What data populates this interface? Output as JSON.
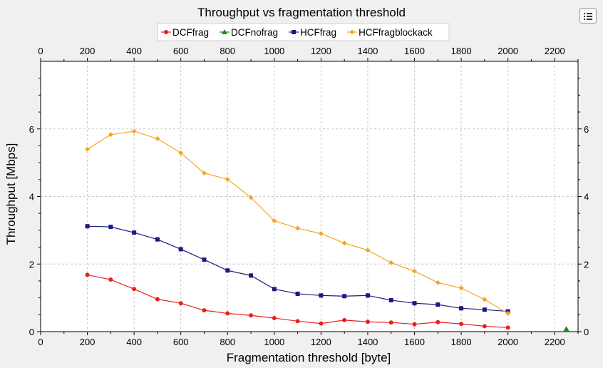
{
  "chart_data": {
    "type": "line",
    "title": "Throughput vs fragmentation threshold",
    "xlabel": "Fragmentation threshold [byte]",
    "ylabel": "Throughput [Mbps]",
    "xlim": [
      0,
      2300
    ],
    "ylim": [
      0,
      8
    ],
    "x_ticks": [
      0,
      200,
      400,
      600,
      800,
      1000,
      1200,
      1400,
      1600,
      1800,
      2000,
      2200
    ],
    "y_ticks": [
      0,
      2,
      4,
      6
    ],
    "grid": true,
    "legend_position": "top",
    "series": [
      {
        "name": "DCFfrag",
        "color": "#e8201c",
        "marker": "circle",
        "x": [
          200,
          300,
          400,
          500,
          600,
          700,
          800,
          900,
          1000,
          1100,
          1200,
          1300,
          1400,
          1500,
          1600,
          1700,
          1800,
          1900,
          2000
        ],
        "y": [
          1.68,
          1.54,
          1.26,
          0.96,
          0.84,
          0.63,
          0.54,
          0.48,
          0.4,
          0.31,
          0.24,
          0.34,
          0.29,
          0.27,
          0.22,
          0.28,
          0.23,
          0.16,
          0.12
        ]
      },
      {
        "name": "DCFnofrag",
        "color": "#1a8a1a",
        "marker": "triangle",
        "x": [
          2250
        ],
        "y": [
          0.08
        ]
      },
      {
        "name": "HCFfrag",
        "color": "#1a1a80",
        "marker": "square",
        "x": [
          200,
          300,
          400,
          500,
          600,
          700,
          800,
          900,
          1000,
          1100,
          1200,
          1300,
          1400,
          1500,
          1600,
          1700,
          1800,
          1900,
          2000
        ],
        "y": [
          3.12,
          3.1,
          2.93,
          2.73,
          2.44,
          2.13,
          1.81,
          1.66,
          1.26,
          1.12,
          1.07,
          1.05,
          1.07,
          0.93,
          0.84,
          0.8,
          0.69,
          0.65,
          0.6
        ]
      },
      {
        "name": "HCFfragblockack",
        "color": "#f5a623",
        "marker": "diamond",
        "x": [
          200,
          300,
          400,
          500,
          600,
          700,
          800,
          900,
          1000,
          1100,
          1200,
          1300,
          1400,
          1500,
          1600,
          1700,
          1800,
          1900,
          2000
        ],
        "y": [
          5.4,
          5.83,
          5.93,
          5.71,
          5.29,
          4.69,
          4.51,
          3.97,
          3.28,
          3.06,
          2.9,
          2.62,
          2.41,
          2.04,
          1.79,
          1.45,
          1.29,
          0.95,
          0.54
        ]
      }
    ]
  },
  "toolbar": {
    "menu_icon": "list-menu-icon"
  }
}
